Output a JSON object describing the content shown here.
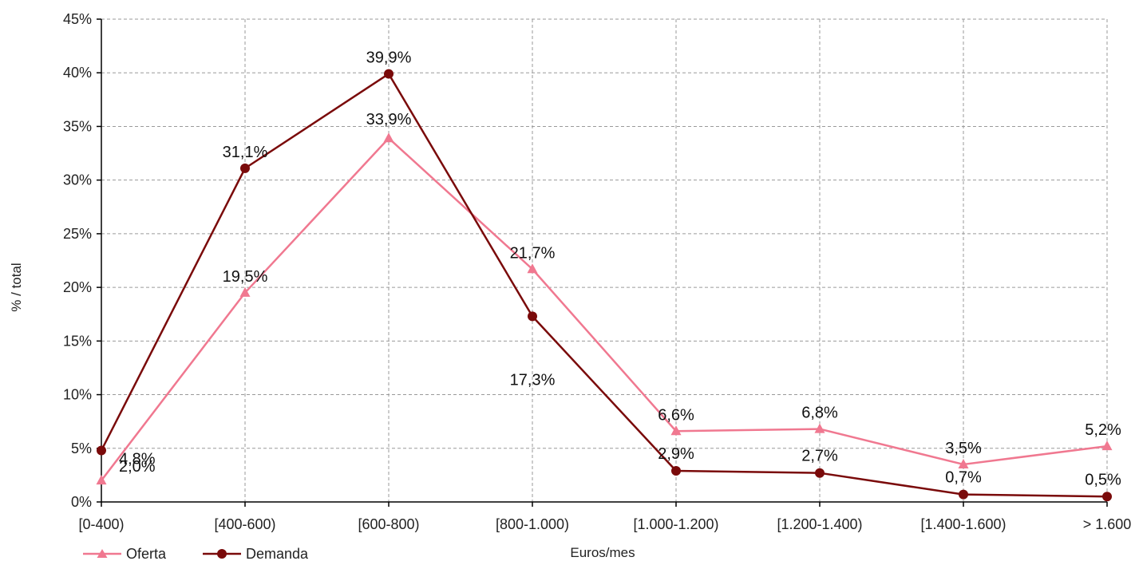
{
  "chart_data": {
    "type": "line",
    "title": "",
    "xlabel": "Euros/mes",
    "ylabel": "% / total",
    "ylim": [
      0,
      45
    ],
    "yticks": [
      "0%",
      "5%",
      "10%",
      "15%",
      "20%",
      "25%",
      "30%",
      "35%",
      "40%",
      "45%"
    ],
    "categories": [
      "[0-400)",
      "[400-600)",
      "[600-800)",
      "[800-1.000)",
      "[1.000-1.200)",
      "[1.200-1.400)",
      "[1.400-1.600)",
      "> 1.600"
    ],
    "grid": true,
    "legend_position": "bottom-left",
    "series": [
      {
        "name": "Oferta",
        "marker": "triangle",
        "color": "#f07890",
        "values": [
          2.0,
          19.5,
          33.9,
          21.7,
          6.6,
          6.8,
          3.5,
          5.2
        ],
        "labels": [
          "2,0%",
          "19,5%",
          "33,9%",
          "21,7%",
          "6,6%",
          "6,8%",
          "3,5%",
          "5,2%"
        ]
      },
      {
        "name": "Demanda",
        "marker": "circle",
        "color": "#7a0a0a",
        "values": [
          4.8,
          31.1,
          39.9,
          17.3,
          2.9,
          2.7,
          0.7,
          0.5
        ],
        "labels": [
          "4,8%",
          "31,1%",
          "39,9%",
          "17,3%",
          "2,9%",
          "2,7%",
          "0,7%",
          "0,5%"
        ]
      }
    ]
  }
}
